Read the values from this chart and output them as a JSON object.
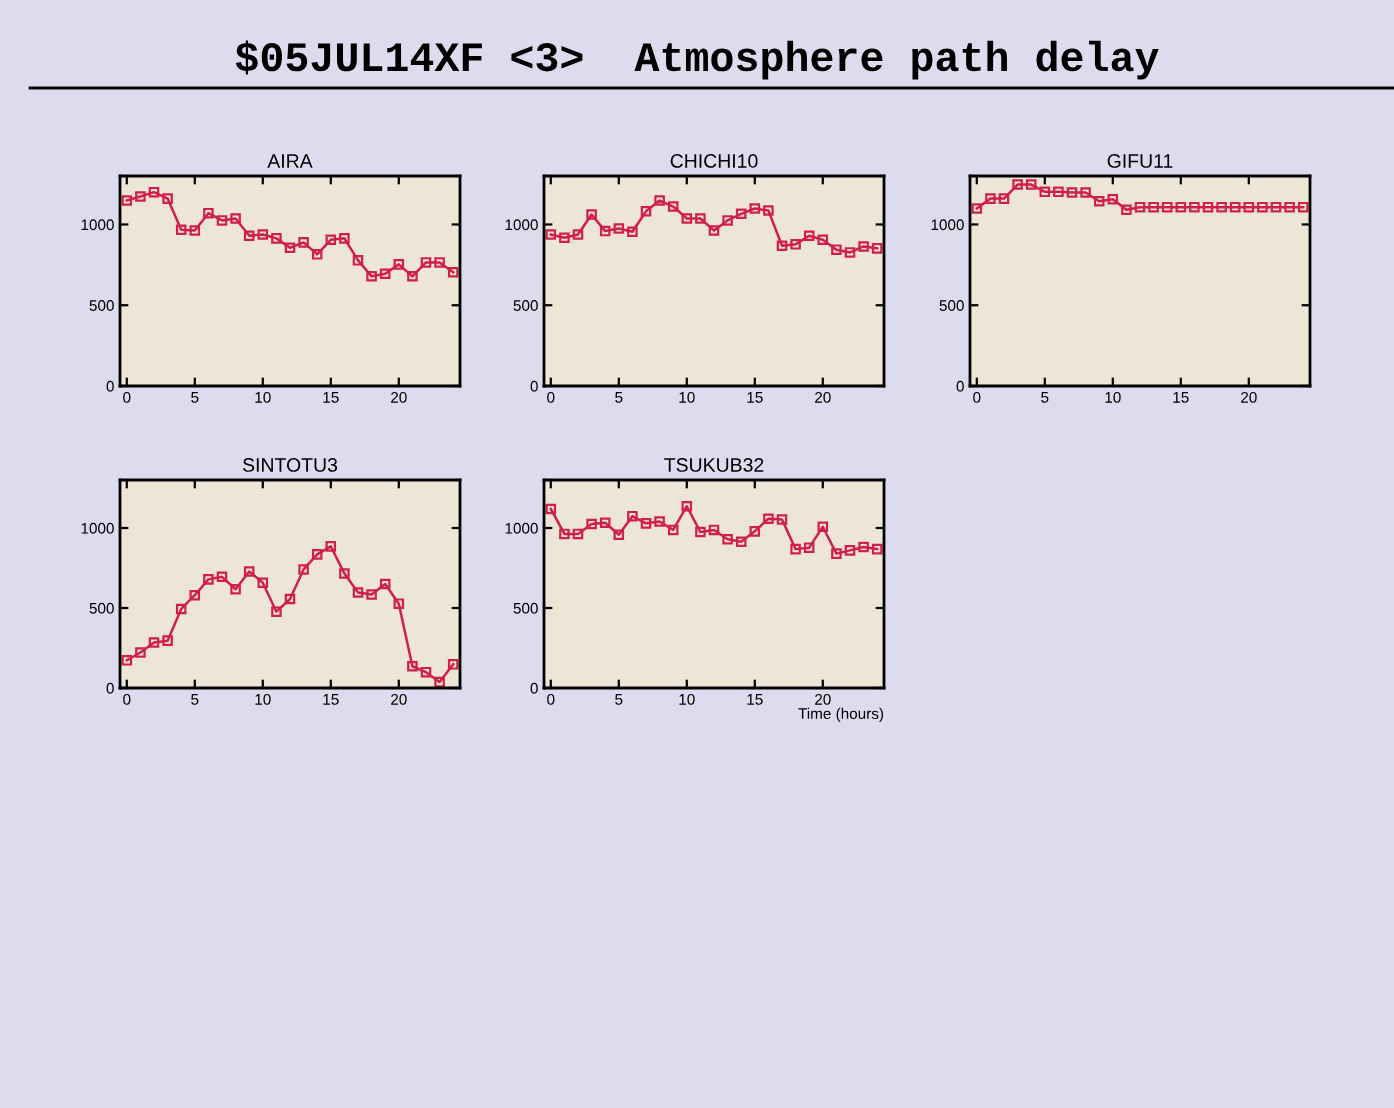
{
  "chart_data": [
    {
      "type": "line",
      "title": "AIRA",
      "annotations": [
        "$05JUL14XF <3>  Atmosphere path delay"
      ],
      "x": [
        0,
        1,
        2,
        3,
        4,
        5,
        6,
        7,
        8,
        9,
        10,
        11,
        12,
        13,
        14,
        15,
        16,
        17,
        18,
        19,
        20,
        21,
        22,
        23,
        24
      ],
      "series": [
        {
          "color": "#d0204a",
          "values": [
            1148,
            1173,
            1200,
            1160,
            967,
            963,
            1070,
            1025,
            1037,
            930,
            938,
            914,
            856,
            889,
            815,
            905,
            914,
            778,
            679,
            695,
            753,
            679,
            765,
            765,
            704
          ]
        }
      ],
      "xlim": [
        -0.5,
        24.5
      ],
      "ylim": [
        0,
        1300
      ],
      "xticks": [
        0,
        5,
        10,
        15,
        20
      ],
      "yticks": [
        0,
        500,
        1000
      ],
      "marker": "square",
      "line_style": "solid",
      "grid": false
    },
    {
      "type": "line",
      "title": "CHICHI10",
      "x": [
        0,
        1,
        2,
        3,
        4,
        5,
        6,
        7,
        8,
        9,
        10,
        11,
        12,
        13,
        14,
        15,
        16,
        17,
        18,
        19,
        20,
        21,
        22,
        23,
        24
      ],
      "series": [
        {
          "color": "#d0204a",
          "values": [
            938,
            918,
            938,
            1062,
            959,
            975,
            955,
            1082,
            1148,
            1111,
            1037,
            1037,
            963,
            1025,
            1066,
            1099,
            1086,
            868,
            877,
            930,
            905,
            844,
            827,
            864,
            852
          ]
        }
      ],
      "xlim": [
        -0.5,
        24.5
      ],
      "ylim": [
        0,
        1300
      ],
      "xticks": [
        0,
        5,
        10,
        15,
        20
      ],
      "yticks": [
        0,
        500,
        1000
      ],
      "marker": "square",
      "line_style": "solid",
      "grid": false
    },
    {
      "type": "line",
      "title": "GIFU11",
      "x": [
        0,
        1,
        2,
        3,
        4,
        5,
        6,
        7,
        8,
        9,
        10,
        11,
        12,
        13,
        14,
        15,
        16,
        17,
        18,
        19,
        20,
        21,
        22,
        23,
        24
      ],
      "series": [
        {
          "color": "#d0204a",
          "values": [
            1099,
            1160,
            1160,
            1247,
            1247,
            1202,
            1202,
            1198,
            1198,
            1144,
            1156,
            1091,
            1107,
            1107,
            1107,
            1107,
            1107,
            1107,
            1107,
            1107,
            1107,
            1107,
            1107,
            1107,
            1107
          ]
        }
      ],
      "xlim": [
        -0.5,
        24.5
      ],
      "ylim": [
        0,
        1300
      ],
      "xticks": [
        0,
        5,
        10,
        15,
        20
      ],
      "yticks": [
        0,
        500,
        1000
      ],
      "marker": "square",
      "line_style": "solid",
      "grid": false
    },
    {
      "type": "line",
      "title": "SINTOTU3",
      "x": [
        0,
        1,
        2,
        3,
        4,
        5,
        6,
        7,
        8,
        9,
        10,
        11,
        12,
        13,
        14,
        15,
        16,
        17,
        18,
        19,
        20,
        21,
        22,
        23,
        24
      ],
      "series": [
        {
          "color": "#d0204a",
          "values": [
            173,
            222,
            284,
            296,
            494,
            580,
            679,
            695,
            617,
            728,
            658,
            477,
            556,
            741,
            835,
            885,
            716,
            597,
            584,
            650,
            527,
            136,
            99,
            37,
            148
          ]
        }
      ],
      "xlim": [
        -0.5,
        24.5
      ],
      "ylim": [
        0,
        1300
      ],
      "xticks": [
        0,
        5,
        10,
        15,
        20
      ],
      "yticks": [
        0,
        500,
        1000
      ],
      "marker": "square",
      "line_style": "solid",
      "grid": false
    },
    {
      "type": "line",
      "title": "TSUKUB32",
      "xlabel": "Time (hours)",
      "x": [
        0,
        1,
        2,
        3,
        4,
        5,
        6,
        7,
        8,
        9,
        10,
        11,
        12,
        13,
        14,
        15,
        16,
        17,
        18,
        19,
        20,
        21,
        22,
        23,
        24
      ],
      "series": [
        {
          "color": "#d0204a",
          "values": [
            1119,
            963,
            963,
            1025,
            1033,
            958,
            1074,
            1029,
            1041,
            988,
            1136,
            975,
            988,
            930,
            914,
            979,
            1058,
            1053,
            868,
            877,
            1008,
            840,
            860,
            881,
            868
          ]
        }
      ],
      "xlim": [
        -0.5,
        24.5
      ],
      "ylim": [
        0,
        1300
      ],
      "xticks": [
        0,
        5,
        10,
        15,
        20
      ],
      "yticks": [
        0,
        500,
        1000
      ],
      "marker": "square",
      "line_style": "solid",
      "grid": false
    }
  ]
}
